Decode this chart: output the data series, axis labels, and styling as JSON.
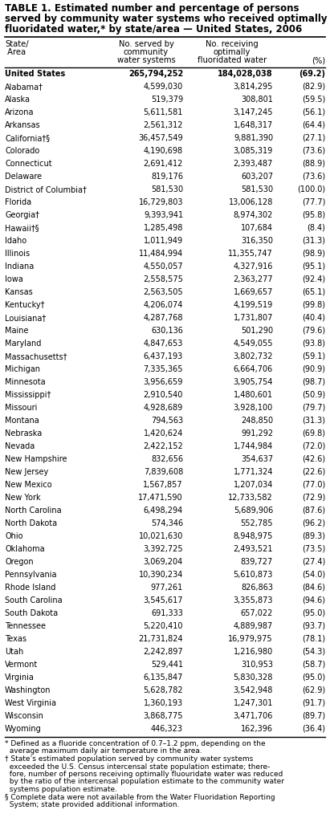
{
  "title_line1": "TABLE 1. Estimated number and percentage of persons",
  "title_line2": "served by community water systems who received optimally",
  "title_line3": "fluoridated water,* by state/area — United States, 2006",
  "col_headers": [
    [
      "State/",
      " Area"
    ],
    [
      "No. served by",
      "community",
      "water systems"
    ],
    [
      "No. receiving",
      "optimally",
      "fluoridated water"
    ],
    [
      "(%)"
    ]
  ],
  "rows": [
    [
      "United States",
      "265,794,252",
      "184,028,038",
      "(69.2)",
      true
    ],
    [
      "Alabama†",
      "4,599,030",
      "3,814,295",
      "(82.9)",
      false
    ],
    [
      "Alaska",
      "519,379",
      "308,801",
      "(59.5)",
      false
    ],
    [
      "Arizona",
      "5,611,581",
      "3,147,245",
      "(56.1)",
      false
    ],
    [
      "Arkansas",
      "2,561,312",
      "1,648,317",
      "(64.4)",
      false
    ],
    [
      "California†§",
      "36,457,549",
      "9,881,390",
      "(27.1)",
      false
    ],
    [
      "Colorado",
      "4,190,698",
      "3,085,319",
      "(73.6)",
      false
    ],
    [
      "Connecticut",
      "2,691,412",
      "2,393,487",
      "(88.9)",
      false
    ],
    [
      "Delaware",
      "819,176",
      "603,207",
      "(73.6)",
      false
    ],
    [
      "District of Columbia†",
      "581,530",
      "581,530",
      "(100.0)",
      false
    ],
    [
      "Florida",
      "16,729,803",
      "13,006,128",
      "(77.7)",
      false
    ],
    [
      "Georgia†",
      "9,393,941",
      "8,974,302",
      "(95.8)",
      false
    ],
    [
      "Hawaii†§",
      "1,285,498",
      "107,684",
      "(8.4)",
      false
    ],
    [
      "Idaho",
      "1,011,949",
      "316,350",
      "(31.3)",
      false
    ],
    [
      "Illinois",
      "11,484,994",
      "11,355,747",
      "(98.9)",
      false
    ],
    [
      "Indiana",
      "4,550,057",
      "4,327,916",
      "(95.1)",
      false
    ],
    [
      "Iowa",
      "2,558,575",
      "2,363,277",
      "(92.4)",
      false
    ],
    [
      "Kansas",
      "2,563,505",
      "1,669,657",
      "(65.1)",
      false
    ],
    [
      "Kentucky†",
      "4,206,074",
      "4,199,519",
      "(99.8)",
      false
    ],
    [
      "Louisiana†",
      "4,287,768",
      "1,731,807",
      "(40.4)",
      false
    ],
    [
      "Maine",
      "630,136",
      "501,290",
      "(79.6)",
      false
    ],
    [
      "Maryland",
      "4,847,653",
      "4,549,055",
      "(93.8)",
      false
    ],
    [
      "Massachusetts†",
      "6,437,193",
      "3,802,732",
      "(59.1)",
      false
    ],
    [
      "Michigan",
      "7,335,365",
      "6,664,706",
      "(90.9)",
      false
    ],
    [
      "Minnesota",
      "3,956,659",
      "3,905,754",
      "(98.7)",
      false
    ],
    [
      "Mississippi†",
      "2,910,540",
      "1,480,601",
      "(50.9)",
      false
    ],
    [
      "Missouri",
      "4,928,689",
      "3,928,100",
      "(79.7)",
      false
    ],
    [
      "Montana",
      "794,563",
      "248,850",
      "(31.3)",
      false
    ],
    [
      "Nebraska",
      "1,420,624",
      "991,292",
      "(69.8)",
      false
    ],
    [
      "Nevada",
      "2,422,152",
      "1,744,984",
      "(72.0)",
      false
    ],
    [
      "New Hampshire",
      "832,656",
      "354,637",
      "(42.6)",
      false
    ],
    [
      "New Jersey",
      "7,839,608",
      "1,771,324",
      "(22.6)",
      false
    ],
    [
      "New Mexico",
      "1,567,857",
      "1,207,034",
      "(77.0)",
      false
    ],
    [
      "New York",
      "17,471,590",
      "12,733,582",
      "(72.9)",
      false
    ],
    [
      "North Carolina",
      "6,498,294",
      "5,689,906",
      "(87.6)",
      false
    ],
    [
      "North Dakota",
      "574,346",
      "552,785",
      "(96.2)",
      false
    ],
    [
      "Ohio",
      "10,021,630",
      "8,948,975",
      "(89.3)",
      false
    ],
    [
      "Oklahoma",
      "3,392,725",
      "2,493,521",
      "(73.5)",
      false
    ],
    [
      "Oregon",
      "3,069,204",
      "839,727",
      "(27.4)",
      false
    ],
    [
      "Pennsylvania",
      "10,390,234",
      "5,610,873",
      "(54.0)",
      false
    ],
    [
      "Rhode Island",
      "977,261",
      "826,863",
      "(84.6)",
      false
    ],
    [
      "South Carolina",
      "3,545,617",
      "3,355,873",
      "(94.6)",
      false
    ],
    [
      "South Dakota",
      "691,333",
      "657,022",
      "(95.0)",
      false
    ],
    [
      "Tennessee",
      "5,220,410",
      "4,889,987",
      "(93.7)",
      false
    ],
    [
      "Texas",
      "21,731,824",
      "16,979,975",
      "(78.1)",
      false
    ],
    [
      "Utah",
      "2,242,897",
      "1,216,980",
      "(54.3)",
      false
    ],
    [
      "Vermont",
      "529,441",
      "310,953",
      "(58.7)",
      false
    ],
    [
      "Virginia",
      "6,135,847",
      "5,830,328",
      "(95.0)",
      false
    ],
    [
      "Washington",
      "5,628,782",
      "3,542,948",
      "(62.9)",
      false
    ],
    [
      "West Virginia",
      "1,360,193",
      "1,247,301",
      "(91.7)",
      false
    ],
    [
      "Wisconsin",
      "3,868,775",
      "3,471,706",
      "(89.7)",
      false
    ],
    [
      "Wyoming",
      "446,323",
      "162,396",
      "(36.4)",
      false
    ]
  ],
  "footnote1": "* Defined as a fluoride concentration of 0.7–1.2 ppm, depending on the\n  average maximum daily air temperature in the area.",
  "footnote2": "† State’s estimated population served by community water systems\n  exceeded the U.S. Census intercensal state population estimate; there-\n  fore, number of persons receiving optimally fluouridate water was reduced\n  by the ratio of the intercensal population estimate to the community water\n  systems population estimate.",
  "footnote3": "§ Complete data were not available from the Water Fluoridation Reporting\n  System; state provided additional information.",
  "bg_color": "#ffffff",
  "text_color": "#000000"
}
